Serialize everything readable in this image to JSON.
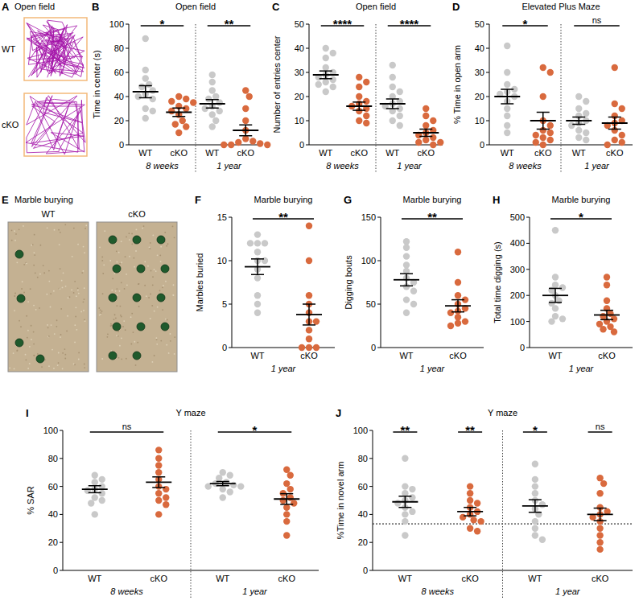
{
  "chart_data": [
    {
      "type": "tracks",
      "panel": "A",
      "title": "Open field",
      "labels": [
        "WT",
        "cKO"
      ]
    },
    {
      "type": "strip",
      "panel": "B",
      "title": "Open field",
      "y_label": "Time in center (s)",
      "categories": [
        "WT",
        "cKO",
        "WT",
        "cKO"
      ],
      "colors": [
        "#c9c9c9",
        "#d96a3e",
        "#c9c9c9",
        "#d96a3e"
      ],
      "points": [
        [
          88,
          62,
          55,
          50,
          48,
          45,
          42,
          40,
          38,
          30,
          28,
          22
        ],
        [
          40,
          38,
          36,
          35,
          32,
          30,
          28,
          25,
          20,
          17,
          15,
          10
        ],
        [
          58,
          52,
          45,
          40,
          38,
          35,
          32,
          30,
          28,
          25,
          20,
          15
        ],
        [
          45,
          40,
          30,
          20,
          12,
          5,
          3,
          2,
          1,
          0,
          0,
          0
        ]
      ],
      "means": [
        44,
        27,
        34,
        12
      ],
      "sem": [
        5,
        3.5,
        3.5,
        4.5
      ],
      "ylim": [
        0,
        100
      ],
      "yticks": [
        0,
        20,
        40,
        60,
        80,
        100
      ],
      "grid": false,
      "group_labels": [
        {
          "label": "8 weeks",
          "categories": [
            0,
            1
          ]
        },
        {
          "label": "1 year",
          "categories": [
            2,
            3
          ]
        }
      ],
      "significance": [
        {
          "label": "*",
          "categories": [
            0,
            1
          ]
        },
        {
          "label": "**",
          "categories": [
            2,
            3
          ]
        }
      ]
    },
    {
      "type": "strip",
      "panel": "C",
      "title": "Open field",
      "y_label": "Number of entries center",
      "categories": [
        "WT",
        "cKO",
        "WT",
        "cKO"
      ],
      "colors": [
        "#c9c9c9",
        "#d96a3e",
        "#c9c9c9",
        "#d96a3e"
      ],
      "points": [
        [
          40,
          38,
          36,
          32,
          30,
          29,
          28,
          27,
          26,
          25,
          24,
          22
        ],
        [
          28,
          26,
          24,
          20,
          18,
          17,
          16,
          15,
          14,
          12,
          10,
          9
        ],
        [
          33,
          28,
          24,
          22,
          20,
          18,
          17,
          16,
          15,
          14,
          12,
          10,
          8
        ],
        [
          15,
          12,
          10,
          8,
          6,
          5,
          4,
          3,
          2,
          1,
          1,
          0
        ]
      ],
      "means": [
        29,
        16,
        17,
        5
      ],
      "sem": [
        1.6,
        1.7,
        2,
        1.5
      ],
      "ylim": [
        0,
        50
      ],
      "yticks": [
        0,
        10,
        20,
        30,
        40,
        50
      ],
      "grid": false,
      "group_labels": [
        {
          "label": "8 weeks",
          "categories": [
            0,
            1
          ]
        },
        {
          "label": "1 year",
          "categories": [
            2,
            3
          ]
        }
      ],
      "significance": [
        {
          "label": "****",
          "categories": [
            0,
            1
          ]
        },
        {
          "label": "****",
          "categories": [
            2,
            3
          ]
        }
      ]
    },
    {
      "type": "strip",
      "panel": "D",
      "title": "Elevated Plus Maze",
      "y_label": "% Time in open arm",
      "categories": [
        "WT",
        "cKO",
        "WT",
        "cKO"
      ],
      "colors": [
        "#c9c9c9",
        "#d96a3e",
        "#c9c9c9",
        "#d96a3e"
      ],
      "points": [
        [
          41,
          30,
          25,
          23,
          22,
          21,
          20,
          18,
          15,
          12,
          8,
          5
        ],
        [
          32,
          30,
          20,
          10,
          8,
          6,
          5,
          4,
          3,
          2,
          1,
          0
        ],
        [
          20,
          18,
          15,
          13,
          12,
          10,
          9,
          8,
          6,
          5,
          3,
          2
        ],
        [
          32,
          17,
          15,
          12,
          10,
          9,
          8,
          6,
          4,
          2,
          1,
          0
        ]
      ],
      "means": [
        20,
        10,
        10,
        9
      ],
      "sem": [
        3,
        3.5,
        1.5,
        2.5
      ],
      "ylim": [
        0,
        50
      ],
      "yticks": [
        0,
        10,
        20,
        30,
        40,
        50
      ],
      "grid": false,
      "group_labels": [
        {
          "label": "8 weeks",
          "categories": [
            0,
            1
          ]
        },
        {
          "label": "1 year",
          "categories": [
            2,
            3
          ]
        }
      ],
      "significance": [
        {
          "label": "*",
          "categories": [
            0,
            1
          ]
        },
        {
          "label": "ns",
          "categories": [
            2,
            3
          ]
        }
      ]
    },
    {
      "type": "photo",
      "panel": "E",
      "title": "Marble burying",
      "labels": [
        "WT",
        "cKO"
      ]
    },
    {
      "type": "strip",
      "panel": "F",
      "title": "Marble burying",
      "y_label": "Marbles buried",
      "categories": [
        "WT",
        "cKO"
      ],
      "colors": [
        "#c9c9c9",
        "#d96a3e"
      ],
      "points": [
        [
          13,
          12,
          12,
          12,
          11,
          10,
          10,
          9,
          8,
          6,
          5,
          4
        ],
        [
          14,
          10,
          6,
          5,
          4,
          3,
          3,
          2,
          1,
          0,
          0,
          0
        ]
      ],
      "means": [
        9.3,
        3.8
      ],
      "sem": [
        0.9,
        1.2
      ],
      "ylim": [
        0,
        15
      ],
      "yticks": [
        0,
        5,
        10,
        15
      ],
      "grid": false,
      "group_labels": [
        {
          "label": "1 year",
          "categories": [
            0,
            1
          ]
        }
      ],
      "significance": [
        {
          "label": "**",
          "categories": [
            0,
            1
          ]
        }
      ]
    },
    {
      "type": "strip",
      "panel": "G",
      "title": "Marble burying",
      "y_label": "Digging bouts",
      "categories": [
        "WT",
        "cKO"
      ],
      "colors": [
        "#c9c9c9",
        "#d96a3e"
      ],
      "points": [
        [
          122,
          115,
          105,
          95,
          88,
          80,
          75,
          70,
          65,
          55,
          50,
          40
        ],
        [
          110,
          75,
          60,
          55,
          50,
          45,
          42,
          40,
          35,
          30,
          28,
          25
        ]
      ],
      "means": [
        78,
        48
      ],
      "sem": [
        7,
        7
      ],
      "ylim": [
        0,
        150
      ],
      "yticks": [
        0,
        50,
        100,
        150
      ],
      "grid": false,
      "group_labels": [
        {
          "label": "1 year",
          "categories": [
            0,
            1
          ]
        }
      ],
      "significance": [
        {
          "label": "**",
          "categories": [
            0,
            1
          ]
        }
      ]
    },
    {
      "type": "strip",
      "panel": "H",
      "title": "Marble burying",
      "y_label": "Total time digging (s)",
      "categories": [
        "WT",
        "cKO"
      ],
      "colors": [
        "#c9c9c9",
        "#d96a3e"
      ],
      "points": [
        [
          450,
          270,
          240,
          230,
          220,
          200,
          180,
          170,
          150,
          120,
          110,
          100
        ],
        [
          270,
          240,
          180,
          150,
          130,
          120,
          110,
          100,
          90,
          80,
          70,
          60
        ]
      ],
      "means": [
        200,
        125
      ],
      "sem": [
        27,
        18
      ],
      "ylim": [
        0,
        500
      ],
      "yticks": [
        0,
        100,
        200,
        300,
        400,
        500
      ],
      "grid": false,
      "group_labels": [
        {
          "label": "1 year",
          "categories": [
            0,
            1
          ]
        }
      ],
      "significance": [
        {
          "label": "*",
          "categories": [
            0,
            1
          ]
        }
      ]
    },
    {
      "type": "strip",
      "panel": "I",
      "title": "Y maze",
      "y_label": "% SAR",
      "categories": [
        "WT",
        "cKO",
        "WT",
        "cKO"
      ],
      "colors": [
        "#c9c9c9",
        "#d96a3e",
        "#c9c9c9",
        "#d96a3e"
      ],
      "points": [
        [
          68,
          65,
          63,
          60,
          58,
          57,
          55,
          52,
          50,
          48,
          40
        ],
        [
          86,
          80,
          75,
          70,
          65,
          60,
          58,
          55,
          52,
          50,
          47,
          40
        ],
        [
          70,
          68,
          66,
          63,
          62,
          61,
          60,
          60,
          58,
          56,
          52
        ],
        [
          72,
          68,
          62,
          58,
          55,
          52,
          50,
          48,
          45,
          40,
          35,
          25
        ]
      ],
      "means": [
        58,
        63,
        62,
        51
      ],
      "sem": [
        2.5,
        3.8,
        1.5,
        3.8
      ],
      "ylim": [
        0,
        100
      ],
      "yticks": [
        0,
        20,
        40,
        60,
        80,
        100
      ],
      "grid": false,
      "group_labels": [
        {
          "label": "8 weeks",
          "categories": [
            0,
            1
          ]
        },
        {
          "label": "1 year",
          "categories": [
            2,
            3
          ]
        }
      ],
      "significance": [
        {
          "label": "ns",
          "categories": [
            0,
            1
          ]
        },
        {
          "label": "*",
          "categories": [
            2,
            3
          ]
        }
      ]
    },
    {
      "type": "strip",
      "panel": "J",
      "title": "Y maze",
      "y_label": "%Time in novel arm",
      "categories": [
        "WT",
        "cKO",
        "WT",
        "cKO"
      ],
      "colors": [
        "#c9c9c9",
        "#d96a3e",
        "#c9c9c9",
        "#d96a3e"
      ],
      "points": [
        [
          80,
          60,
          58,
          55,
          52,
          50,
          48,
          45,
          42,
          40,
          35,
          25
        ],
        [
          60,
          55,
          50,
          48,
          45,
          42,
          40,
          38,
          36,
          35,
          30,
          28
        ],
        [
          76,
          65,
          60,
          55,
          50,
          47,
          44,
          40,
          35,
          30,
          25,
          22
        ],
        [
          66,
          62,
          55,
          45,
          42,
          40,
          38,
          35,
          30,
          25,
          20,
          15
        ]
      ],
      "means": [
        49,
        42,
        46,
        40
      ],
      "sem": [
        4,
        3,
        4.5,
        4.5
      ],
      "ylim": [
        0,
        100
      ],
      "yticks": [
        0,
        20,
        40,
        60,
        80,
        100
      ],
      "grid": false,
      "reference_line": 33.3,
      "group_labels": [
        {
          "label": "8 weeks",
          "categories": [
            0,
            1
          ]
        },
        {
          "label": "1 year",
          "categories": [
            2,
            3
          ]
        }
      ],
      "significance": [
        {
          "label": "**",
          "categories": [
            0,
            0
          ]
        },
        {
          "label": "**",
          "categories": [
            1,
            1
          ]
        },
        {
          "label": "*",
          "categories": [
            2,
            2
          ]
        },
        {
          "label": "ns",
          "categories": [
            3,
            3
          ]
        }
      ]
    }
  ]
}
